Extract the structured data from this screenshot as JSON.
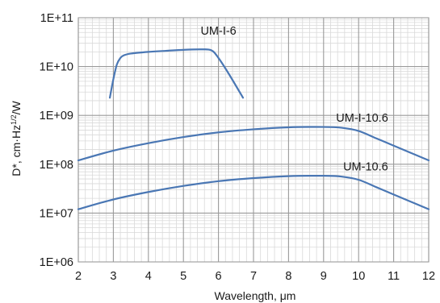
{
  "chart_data": {
    "type": "line",
    "xlabel": "Wavelength, μm",
    "ylabel": "D*, cm·Hz^1/2/W",
    "ylabel_parts": {
      "main": "D*, cm·Hz",
      "sup": "1/2",
      "tail": "/W"
    },
    "xlim": [
      2,
      12
    ],
    "ylim": [
      1000000,
      100000000000
    ],
    "yscale": "log",
    "x_ticks": [
      "2",
      "3",
      "4",
      "5",
      "6",
      "7",
      "8",
      "9",
      "10",
      "11",
      "12"
    ],
    "y_ticks": [
      "1E+06",
      "1E+07",
      "1E+08",
      "1E+09",
      "1E+10",
      "1E+11"
    ],
    "grid": true,
    "series": [
      {
        "name": "UM-I-6",
        "color": "#4a77b4",
        "x": [
          2.9,
          3.0,
          3.1,
          3.2,
          3.3,
          3.5,
          4.0,
          4.5,
          5.0,
          5.5,
          5.8,
          6.0,
          6.3,
          6.7
        ],
        "y": [
          2300000000,
          5500000000,
          11000000000,
          15000000000,
          17000000000,
          18500000000,
          20000000000,
          21000000000,
          22000000000,
          22500000000,
          21500000000,
          15000000000,
          7000000000,
          2300000000
        ]
      },
      {
        "name": "UM-I-10.6",
        "color": "#4a77b4",
        "x": [
          2,
          3,
          4,
          5,
          6,
          7,
          8,
          9,
          9.5,
          10,
          10.5,
          11,
          12
        ],
        "y": [
          120000000,
          190000000,
          270000000,
          360000000,
          450000000,
          520000000,
          570000000,
          580000000,
          560000000,
          480000000,
          340000000,
          240000000,
          120000000
        ]
      },
      {
        "name": "UM-10.6",
        "color": "#4a77b4",
        "x": [
          2,
          3,
          4,
          5,
          6,
          7,
          8,
          9,
          9.5,
          10,
          10.5,
          11,
          12
        ],
        "y": [
          12000000,
          19000000,
          27000000,
          36000000,
          45000000,
          52000000,
          57000000,
          58000000,
          56000000,
          48000000,
          34000000,
          24000000,
          12000000
        ]
      }
    ],
    "annotations": [
      {
        "text": "UM-I-6",
        "x": 6.0,
        "y": 45000000000
      },
      {
        "text": "UM-I-10.6",
        "x": 10.1,
        "y": 750000000
      },
      {
        "text": "UM-10.6",
        "x": 10.2,
        "y": 75000000
      }
    ]
  }
}
